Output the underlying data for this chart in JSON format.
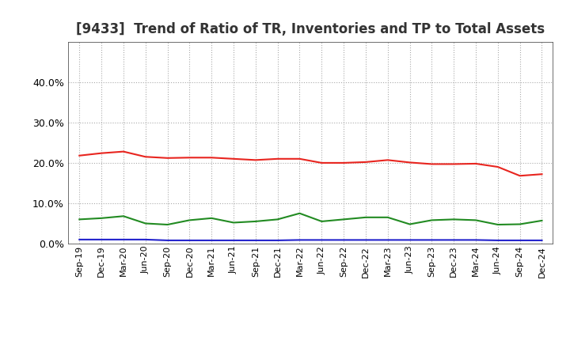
{
  "title": "[9433]  Trend of Ratio of TR, Inventories and TP to Total Assets",
  "x_labels": [
    "Sep-19",
    "Dec-19",
    "Mar-20",
    "Jun-20",
    "Sep-20",
    "Dec-20",
    "Mar-21",
    "Jun-21",
    "Sep-21",
    "Dec-21",
    "Mar-22",
    "Jun-22",
    "Sep-22",
    "Dec-22",
    "Mar-23",
    "Jun-23",
    "Sep-23",
    "Dec-23",
    "Mar-24",
    "Jun-24",
    "Sep-24",
    "Dec-24"
  ],
  "trade_receivables": [
    0.218,
    0.224,
    0.228,
    0.215,
    0.212,
    0.213,
    0.213,
    0.21,
    0.207,
    0.21,
    0.21,
    0.2,
    0.2,
    0.202,
    0.207,
    0.201,
    0.197,
    0.197,
    0.198,
    0.19,
    0.168,
    0.172
  ],
  "inventories": [
    0.01,
    0.01,
    0.01,
    0.01,
    0.008,
    0.008,
    0.008,
    0.008,
    0.008,
    0.008,
    0.009,
    0.009,
    0.009,
    0.009,
    0.009,
    0.009,
    0.009,
    0.009,
    0.009,
    0.008,
    0.008,
    0.008
  ],
  "trade_payables": [
    0.06,
    0.063,
    0.068,
    0.05,
    0.047,
    0.058,
    0.063,
    0.052,
    0.055,
    0.06,
    0.075,
    0.055,
    0.06,
    0.065,
    0.065,
    0.048,
    0.058,
    0.06,
    0.058,
    0.047,
    0.048,
    0.057
  ],
  "tr_color": "#e8251f",
  "inv_color": "#2222cc",
  "tp_color": "#228B22",
  "ylim": [
    0.0,
    0.5
  ],
  "yticks": [
    0.0,
    0.1,
    0.2,
    0.3,
    0.4
  ],
  "background_color": "#ffffff",
  "grid_color": "#aaaaaa",
  "title_fontsize": 12,
  "tick_fontsize": 8,
  "legend_fontsize": 9,
  "line_width": 1.5
}
